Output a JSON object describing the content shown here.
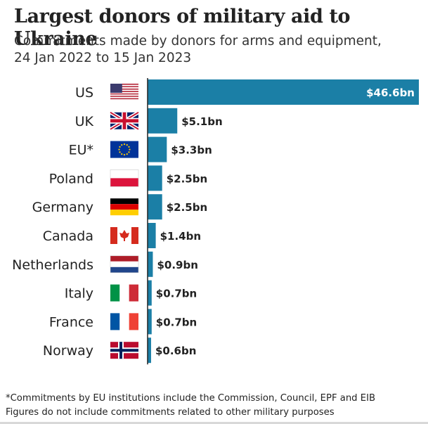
{
  "title": "Largest donors of military aid to Ukraine",
  "subtitle_line1": "Commitments made by donors for arms and equipment,",
  "subtitle_line2": "24 Jan 2022 to 15 Jan 2023",
  "footnotes": [
    "*Commitments by EU institutions include the Commission, Council, EPF and EIB",
    "Figures do not include commitments related to other military purposes"
  ],
  "colors": {
    "bar": "#1b7fa6",
    "axis": "#222222",
    "label_on_bar": "#ffffff",
    "label": "#222222"
  },
  "chart_data": {
    "type": "bar",
    "orientation": "horizontal",
    "categories": [
      "US",
      "UK",
      "EU*",
      "Poland",
      "Germany",
      "Canada",
      "Netherlands",
      "Italy",
      "France",
      "Norway"
    ],
    "flags": [
      "flag-us-icon",
      "flag-uk-icon",
      "flag-eu-icon",
      "flag-poland-icon",
      "flag-germany-icon",
      "flag-canada-icon",
      "flag-netherlands-icon",
      "flag-italy-icon",
      "flag-france-icon",
      "flag-norway-icon"
    ],
    "values": [
      46.6,
      5.1,
      3.3,
      2.5,
      2.5,
      1.4,
      0.9,
      0.7,
      0.7,
      0.6
    ],
    "value_labels": [
      "$46.6bn",
      "$5.1bn",
      "$3.3bn",
      "$2.5bn",
      "$2.5bn",
      "$1.4bn",
      "$0.9bn",
      "$0.7bn",
      "$0.7bn",
      "$0.6bn"
    ],
    "unit": "$bn",
    "xlim": [
      0,
      46.6
    ],
    "grid": false,
    "legend": "none"
  }
}
